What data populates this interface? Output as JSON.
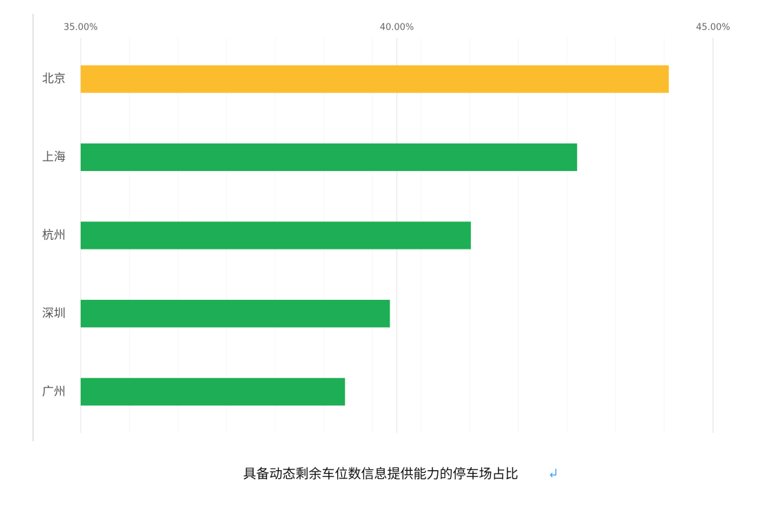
{
  "chart_data": {
    "type": "bar",
    "orientation": "horizontal",
    "caption": "具备动态剩余车位数信息提供能力的停车场占比",
    "categories": [
      "北京",
      "上海",
      "杭州",
      "深圳",
      "广州"
    ],
    "values": [
      44.3,
      42.85,
      41.17,
      39.89,
      39.18
    ],
    "colors": [
      "#fbbd2e",
      "#1eae55",
      "#1eae55",
      "#1eae55",
      "#1eae55"
    ],
    "xlim": [
      35,
      45
    ],
    "xticks": [
      {
        "value": 35,
        "label": "35.00%"
      },
      {
        "value": 40,
        "label": "40.00%"
      },
      {
        "value": 45,
        "label": "45.00%"
      }
    ],
    "grid": true
  }
}
